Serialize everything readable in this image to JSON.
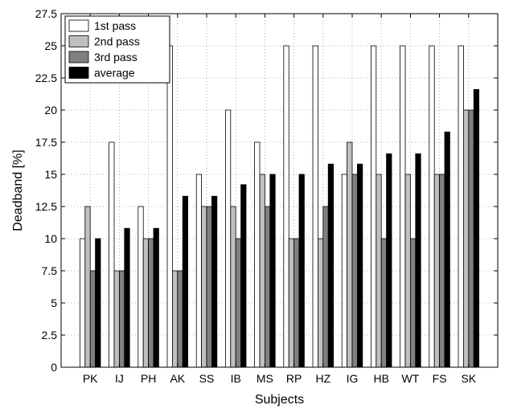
{
  "chart_data": {
    "type": "bar",
    "title": "",
    "xlabel": "Subjects",
    "ylabel": "Deadband [%]",
    "ylim": [
      0,
      27.5
    ],
    "yticks": [
      0,
      2.5,
      5,
      7.5,
      10,
      12.5,
      15,
      17.5,
      20,
      22.5,
      25,
      27.5
    ],
    "ytick_labels": [
      "0",
      "2.5",
      "5",
      "7.5",
      "10",
      "12.5",
      "15",
      "17.5",
      "20",
      "22.5",
      "25",
      "27.5"
    ],
    "grid": true,
    "legend_position": "top-left",
    "categories": [
      "PK",
      "IJ",
      "PH",
      "AK",
      "SS",
      "IB",
      "MS",
      "RP",
      "HZ",
      "IG",
      "HB",
      "WT",
      "FS",
      "SK"
    ],
    "series": [
      {
        "name": "1st pass",
        "color": "#ffffff",
        "values": [
          10,
          17.5,
          12.5,
          25,
          15,
          20,
          17.5,
          25,
          25,
          15,
          25,
          25,
          25,
          25
        ]
      },
      {
        "name": "2nd pass",
        "color": "#bfbfbf",
        "values": [
          12.5,
          7.5,
          10,
          7.5,
          12.5,
          12.5,
          15,
          10,
          10,
          17.5,
          15,
          15,
          15,
          20
        ]
      },
      {
        "name": "3rd pass",
        "color": "#808080",
        "values": [
          7.5,
          7.5,
          10,
          7.5,
          12.5,
          10,
          12.5,
          10,
          12.5,
          15,
          10,
          10,
          15,
          20
        ]
      },
      {
        "name": "average",
        "color": "#000000",
        "values": [
          10,
          10.8,
          10.8,
          13.3,
          13.3,
          14.2,
          15,
          15,
          15.8,
          15.8,
          16.6,
          16.6,
          18.3,
          21.6
        ]
      }
    ]
  }
}
